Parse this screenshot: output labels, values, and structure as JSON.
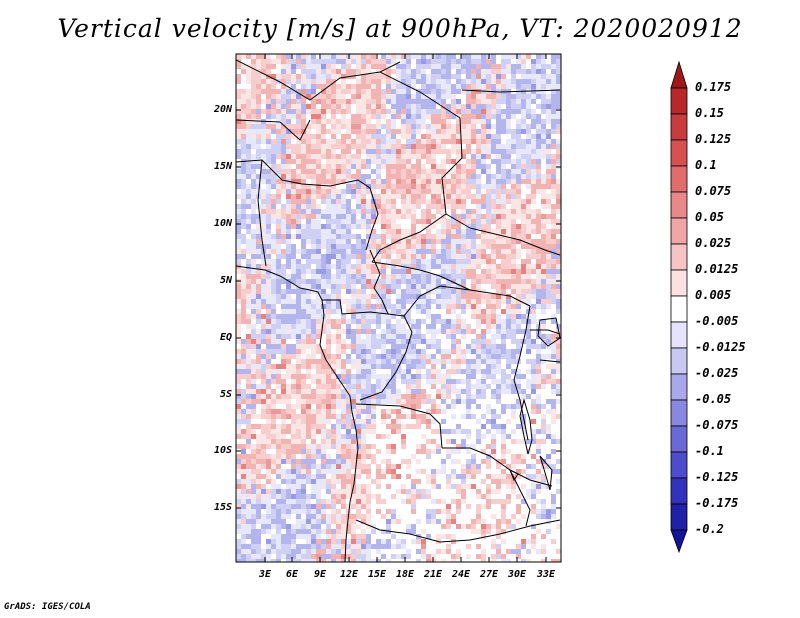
{
  "title": "Vertical velocity [m/s] at 900hPa, VT: 2020020912",
  "credit": "GrADS: IGES/COLA",
  "map": {
    "lat_ticks": [
      "20N",
      "15N",
      "10N",
      "5N",
      "EQ",
      "5S",
      "10S",
      "15S"
    ],
    "lon_ticks": [
      "3E",
      "6E",
      "9E",
      "12E",
      "15E",
      "18E",
      "21E",
      "24E",
      "27E",
      "30E",
      "33E"
    ]
  },
  "colorbar": {
    "labels": [
      "0.175",
      "0.15",
      "0.125",
      "0.1",
      "0.075",
      "0.05",
      "0.025",
      "0.0125",
      "0.005",
      "-0.005",
      "-0.0125",
      "-0.025",
      "-0.05",
      "-0.075",
      "-0.1",
      "-0.125",
      "-0.175",
      "-0.2"
    ],
    "colors": [
      "#a01818",
      "#b82828",
      "#c83c3c",
      "#d85050",
      "#e06c6c",
      "#e88888",
      "#f0a6a6",
      "#f6c4c4",
      "#fae2e2",
      "#ffffff",
      "#e4e4fa",
      "#c8c8f2",
      "#a8a8ea",
      "#8888e0",
      "#6a6ad6",
      "#4c4ccc",
      "#3232bc",
      "#2020a8",
      "#14149a"
    ]
  }
}
